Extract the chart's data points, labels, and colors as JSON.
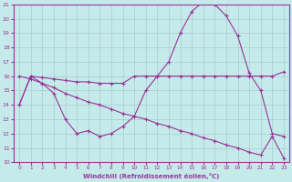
{
  "xlabel": "Windchill (Refroidissement éolien,°C)",
  "background_color": "#c5eaea",
  "line_color": "#993399",
  "grid_color": "#aacccc",
  "xlim": [
    -0.5,
    23.5
  ],
  "ylim": [
    10,
    21
  ],
  "yticks": [
    10,
    11,
    12,
    13,
    14,
    15,
    16,
    17,
    18,
    19,
    20,
    21
  ],
  "xticks": [
    0,
    1,
    2,
    3,
    4,
    5,
    6,
    7,
    8,
    9,
    10,
    11,
    12,
    13,
    14,
    15,
    16,
    17,
    18,
    19,
    20,
    21,
    22,
    23
  ],
  "series1_x": [
    0,
    1,
    2,
    3,
    4,
    5,
    6,
    7,
    8,
    9,
    10,
    11,
    12,
    13,
    14,
    15,
    16,
    17,
    18,
    19,
    20,
    21,
    22,
    23
  ],
  "series1_y": [
    14.0,
    16.0,
    15.9,
    15.8,
    15.7,
    15.6,
    15.6,
    15.5,
    15.5,
    15.5,
    16.0,
    16.0,
    16.0,
    16.0,
    16.0,
    16.0,
    16.0,
    16.0,
    16.0,
    16.0,
    16.0,
    16.0,
    16.0,
    16.3
  ],
  "series2_x": [
    0,
    1,
    2,
    3,
    4,
    5,
    6,
    7,
    8,
    9,
    10,
    11,
    12,
    13,
    14,
    15,
    16,
    17,
    18,
    19,
    20,
    21,
    22,
    23
  ],
  "series2_y": [
    14.0,
    16.0,
    15.5,
    14.8,
    13.0,
    12.0,
    12.2,
    11.8,
    12.0,
    12.5,
    13.2,
    15.0,
    16.0,
    17.0,
    19.0,
    20.5,
    21.2,
    21.0,
    20.2,
    18.8,
    16.2,
    15.0,
    12.0,
    11.8
  ],
  "series3_x": [
    0,
    1,
    2,
    3,
    4,
    5,
    6,
    7,
    8,
    9,
    10,
    11,
    12,
    13,
    14,
    15,
    16,
    17,
    18,
    19,
    20,
    21,
    22,
    23
  ],
  "series3_y": [
    16.0,
    15.8,
    15.5,
    15.2,
    14.8,
    14.5,
    14.2,
    14.0,
    13.7,
    13.4,
    13.2,
    13.0,
    12.7,
    12.5,
    12.2,
    12.0,
    11.7,
    11.5,
    11.2,
    11.0,
    10.7,
    10.5,
    11.8,
    10.3
  ]
}
